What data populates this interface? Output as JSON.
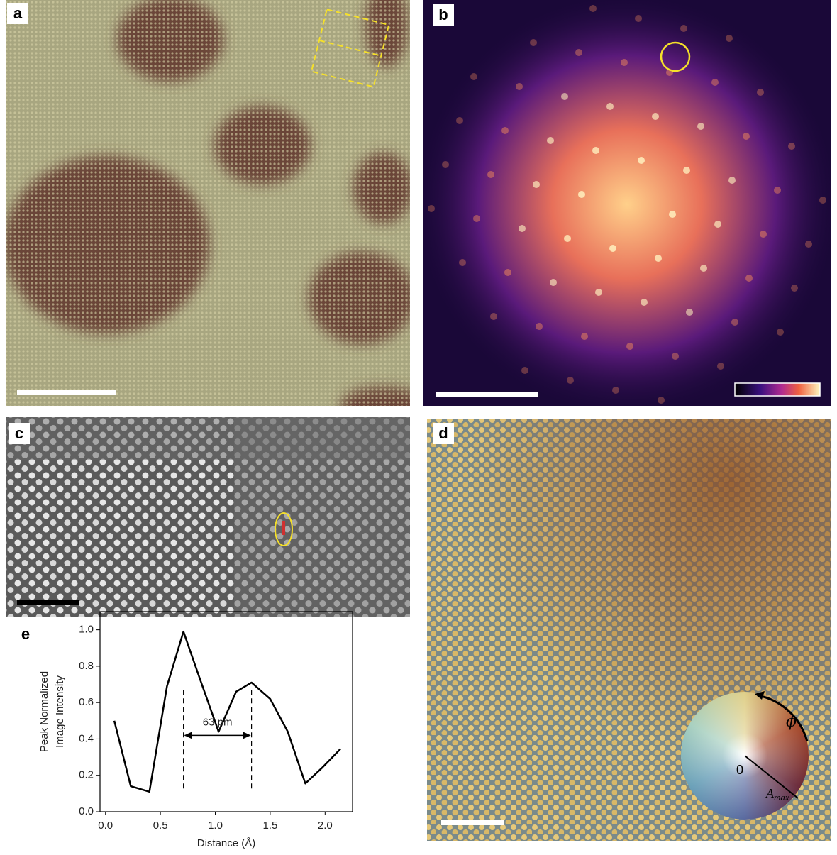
{
  "panels": {
    "a": {
      "label": "a"
    },
    "b": {
      "label": "b"
    },
    "c": {
      "label": "c"
    },
    "d": {
      "label": "d",
      "phase_symbol": "ϕ",
      "origin_label": "0",
      "amplitude_symbol": "A",
      "amplitude_subscript": "max"
    }
  },
  "chart_data": {
    "type": "line",
    "panel_label": "e",
    "xlabel": "Distance (Å)",
    "ylabel": [
      "Peak Normalized",
      "Image Intensity"
    ],
    "x": [
      0.08,
      0.23,
      0.4,
      0.56,
      0.71,
      0.86,
      1.03,
      1.19,
      1.33,
      1.5,
      1.66,
      1.82,
      1.97,
      2.14
    ],
    "series": [
      {
        "color": "#000000",
        "values": [
          0.5,
          0.14,
          0.11,
          0.69,
          0.99,
          0.73,
          0.44,
          0.66,
          0.71,
          0.62,
          0.44,
          0.155,
          0.24,
          0.345
        ]
      }
    ],
    "xlim": [
      -0.05,
      2.25
    ],
    "ylim": [
      0,
      1.1
    ],
    "xticks": [
      {
        "value": 0,
        "label": "0.0"
      },
      {
        "value": 0.5,
        "label": "0.5"
      },
      {
        "value": 1,
        "label": "1.0"
      },
      {
        "value": 1.5,
        "label": "1.5"
      },
      {
        "value": 2,
        "label": "2.0"
      }
    ],
    "yticks": [
      {
        "value": 0,
        "label": "0.0"
      },
      {
        "value": 0.2,
        "label": "0.2"
      },
      {
        "value": 0.4,
        "label": "0.4"
      },
      {
        "value": 0.6,
        "label": "0.6"
      },
      {
        "value": 0.8,
        "label": "0.8"
      },
      {
        "value": 1,
        "label": "1.0"
      }
    ],
    "vlines": [
      0.71,
      1.33
    ],
    "annotation": "63 pm",
    "annotation_y": 0.42,
    "grid": false
  }
}
